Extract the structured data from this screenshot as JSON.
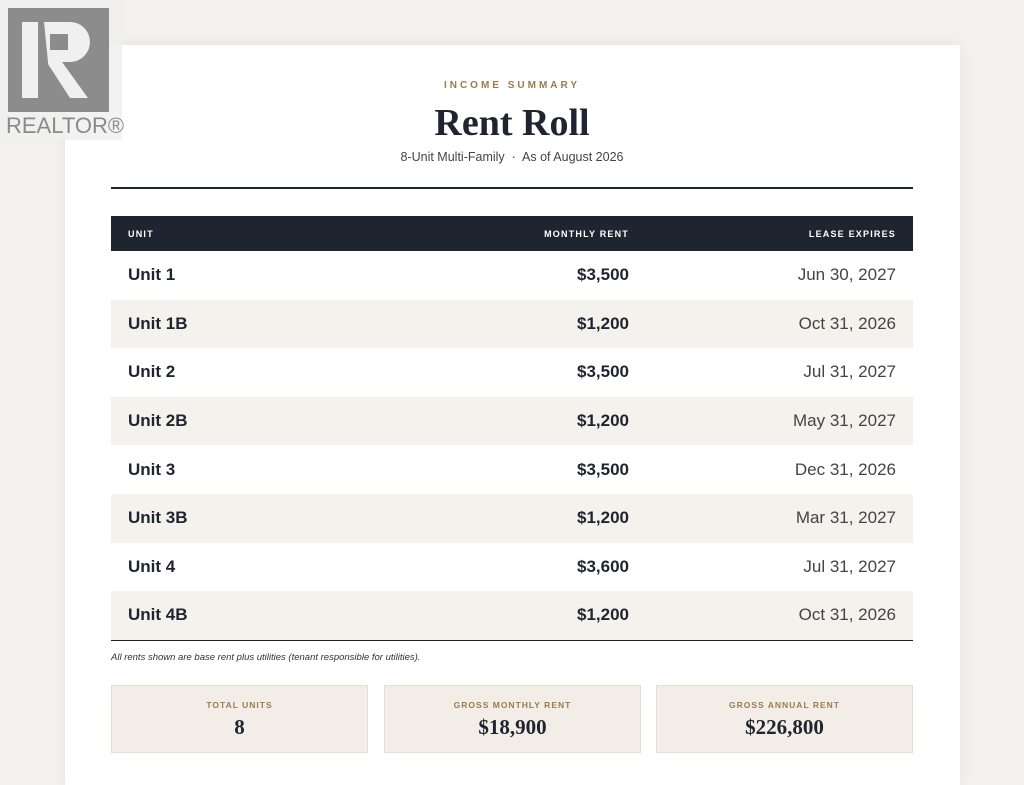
{
  "logo": {
    "text": "REALTOR®"
  },
  "header": {
    "eyebrow": "INCOME SUMMARY",
    "title": "Rent Roll",
    "subtitle": "8-Unit Multi-Family  ·  As of August 2026"
  },
  "table": {
    "columns": [
      "UNIT",
      "MONTHLY RENT",
      "LEASE EXPIRES"
    ],
    "rows": [
      [
        "Unit 1",
        "$3,500",
        "Jun 30, 2027"
      ],
      [
        "Unit 1B",
        "$1,200",
        "Oct 31, 2026"
      ],
      [
        "Unit 2",
        "$3,500",
        "Jul 31, 2027"
      ],
      [
        "Unit 2B",
        "$1,200",
        "May 31, 2027"
      ],
      [
        "Unit 3",
        "$3,500",
        "Dec 31, 2026"
      ],
      [
        "Unit 3B",
        "$1,200",
        "Mar 31, 2027"
      ],
      [
        "Unit 4",
        "$3,600",
        "Jul 31, 2027"
      ],
      [
        "Unit 4B",
        "$1,200",
        "Oct 31, 2026"
      ]
    ]
  },
  "note": "All rents shown are base rent plus utilities (tenant responsible for utilities).",
  "summary": [
    {
      "label": "TOTAL UNITS",
      "value": "8"
    },
    {
      "label": "GROSS MONTHLY RENT",
      "value": "$18,900"
    },
    {
      "label": "GROSS ANNUAL RENT",
      "value": "$226,800"
    }
  ]
}
